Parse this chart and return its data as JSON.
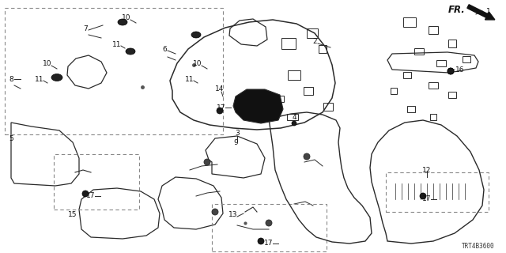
{
  "background_color": "#ffffff",
  "diagram_code": "TRT4B3600",
  "line_color": "#2a2a2a",
  "dashed_color": "#888888"
}
